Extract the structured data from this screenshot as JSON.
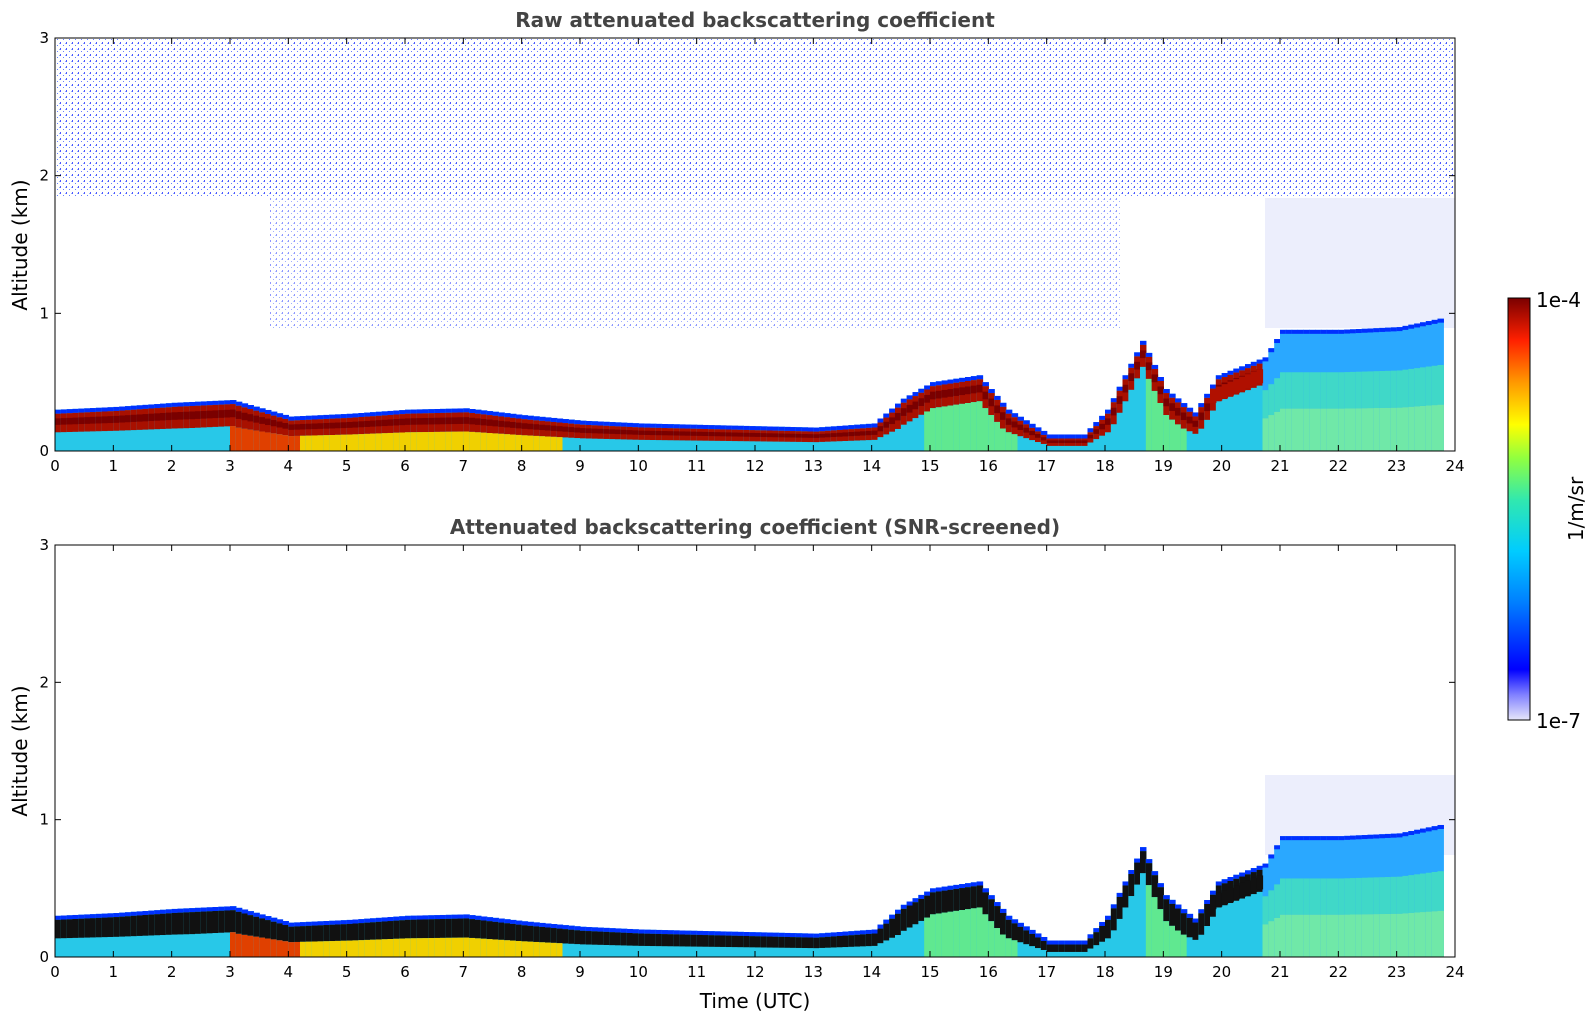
{
  "chart_data": [
    {
      "type": "heatmap",
      "title": "Raw attenuated backscattering coefficient",
      "xlabel": "",
      "ylabel": "Altitude (km)",
      "xlim": [
        0,
        24
      ],
      "ylim": [
        0,
        3
      ],
      "xticks": [
        "0",
        "1",
        "2",
        "3",
        "4",
        "5",
        "6",
        "7",
        "8",
        "9",
        "10",
        "11",
        "12",
        "13",
        "14",
        "15",
        "16",
        "17",
        "18",
        "19",
        "20",
        "21",
        "22",
        "23",
        "24"
      ],
      "yticks": [
        "0",
        "1",
        "2",
        "3"
      ],
      "layer_top_km": [
        [
          0,
          0.3
        ],
        [
          1,
          0.32
        ],
        [
          2,
          0.35
        ],
        [
          3,
          0.37
        ],
        [
          4,
          0.25
        ],
        [
          5,
          0.27
        ],
        [
          6,
          0.3
        ],
        [
          7,
          0.31
        ],
        [
          8,
          0.26
        ],
        [
          9,
          0.22
        ],
        [
          10,
          0.2
        ],
        [
          11,
          0.19
        ],
        [
          12,
          0.18
        ],
        [
          13,
          0.17
        ],
        [
          14,
          0.2
        ],
        [
          14.5,
          0.38
        ],
        [
          15,
          0.5
        ],
        [
          15.8,
          0.55
        ],
        [
          16.3,
          0.3
        ],
        [
          17,
          0.12
        ],
        [
          17.6,
          0.12
        ],
        [
          18,
          0.3
        ],
        [
          18.6,
          0.8
        ],
        [
          19,
          0.45
        ],
        [
          19.5,
          0.28
        ],
        [
          19.9,
          0.55
        ],
        [
          20.7,
          0.68
        ],
        [
          21,
          0.88
        ],
        [
          22,
          0.88
        ],
        [
          23,
          0.9
        ],
        [
          23.8,
          0.97
        ]
      ]
    },
    {
      "type": "heatmap",
      "title": "Attenuated backscattering coefficient (SNR-screened)",
      "xlabel": "Time (UTC)",
      "ylabel": "Altitude (km)",
      "xlim": [
        0,
        24
      ],
      "ylim": [
        0,
        3
      ],
      "xticks": [
        "0",
        "1",
        "2",
        "3",
        "4",
        "5",
        "6",
        "7",
        "8",
        "9",
        "10",
        "11",
        "12",
        "13",
        "14",
        "15",
        "16",
        "17",
        "18",
        "19",
        "20",
        "21",
        "22",
        "23",
        "24"
      ],
      "yticks": [
        "0",
        "1",
        "2",
        "3"
      ]
    }
  ],
  "colorbar": {
    "max_label": "1e-4",
    "min_label": "1e-7",
    "unit": "1/m/sr",
    "colors": [
      "#e6e6fa",
      "#6060ff",
      "#0000ff",
      "#0080ff",
      "#00ccff",
      "#20e0c0",
      "#80ff40",
      "#ffff00",
      "#ff9900",
      "#ff2000",
      "#7a0000"
    ]
  }
}
